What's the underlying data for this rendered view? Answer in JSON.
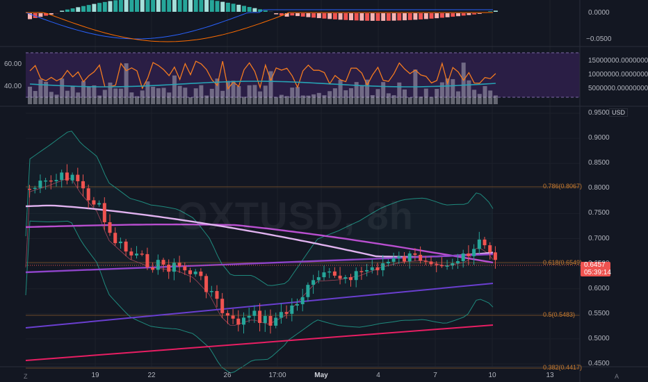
{
  "symbol": "OXTUSD",
  "timeframe": "8h",
  "currency": "USD",
  "colors": {
    "background": "#131722",
    "grid": "#1f2430",
    "up": "#26a69a",
    "down": "#ef5350",
    "fib": "#c77b30",
    "rsi_bg": "#2a1e45"
  },
  "macd_axis": [
    "0.0000",
    "−0.0500"
  ],
  "rsi_axis": [
    "60.00",
    "40.00"
  ],
  "volume_axis": [
    "15000000.00000000",
    "10000000.00000000",
    "5000000.00000000"
  ],
  "price_axis": [
    "0.9500",
    "0.9000",
    "0.8500",
    "0.8000",
    "0.7500",
    "0.7000",
    "0.6500",
    "0.6000",
    "0.5500",
    "0.5000",
    "0.4500"
  ],
  "x_axis": [
    "19",
    "22",
    "26",
    "17:00",
    "May",
    "4",
    "7",
    "10",
    "13"
  ],
  "fib_levels": [
    "0.786(0.8067)",
    "0.618(0.6549)",
    "0.5(0.5483)",
    "0.382(0.4417)"
  ],
  "current_price": "0.6457",
  "countdown": "05:39:14",
  "corner_left": "Z",
  "corner_right": "A"
}
